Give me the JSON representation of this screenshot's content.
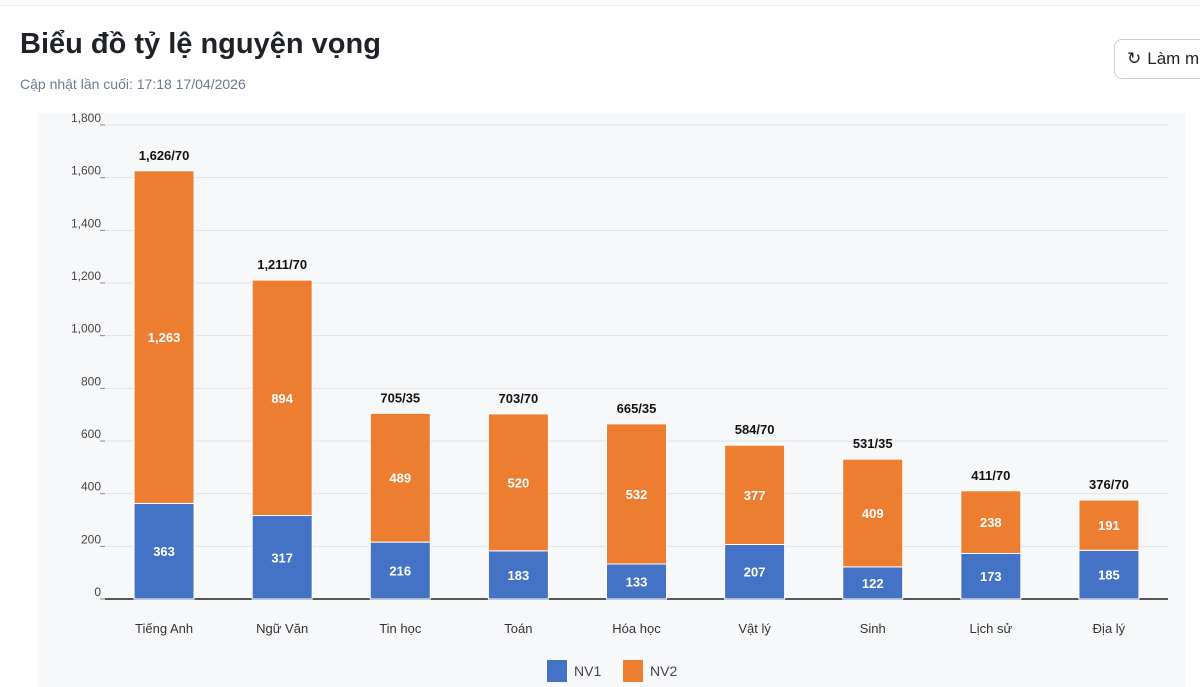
{
  "header": {
    "title": "Biểu đồ tỷ lệ nguyện vọng",
    "subtitle": "Cập nhật lần cuối: 17:18 17/04/2026",
    "refresh_label": "Làm m",
    "refresh_icon": "refresh-icon"
  },
  "chart_data": {
    "type": "bar",
    "stacked": true,
    "categories": [
      "Tiếng Anh",
      "Ngữ Văn",
      "Tin học",
      "Toán",
      "Hóa học",
      "Vật lý",
      "Sinh",
      "Lịch sử",
      "Địa lý"
    ],
    "series": [
      {
        "name": "NV1",
        "color": "#4472c4",
        "values": [
          363,
          317,
          216,
          183,
          133,
          207,
          122,
          173,
          185
        ]
      },
      {
        "name": "NV2",
        "color": "#ed7d31",
        "values": [
          1263,
          894,
          489,
          520,
          532,
          377,
          409,
          238,
          191
        ]
      }
    ],
    "total_labels": [
      "1,626/70",
      "1,211/70",
      "705/35",
      "703/70",
      "665/35",
      "584/70",
      "531/35",
      "411/70",
      "376/70"
    ],
    "ylim": [
      0,
      1800
    ],
    "yticks": [
      "0",
      "200",
      "400",
      "600",
      "800",
      "1,000",
      "1,200",
      "1,400",
      "1,600",
      "1,800"
    ],
    "grid": true,
    "legend": "bottom"
  }
}
